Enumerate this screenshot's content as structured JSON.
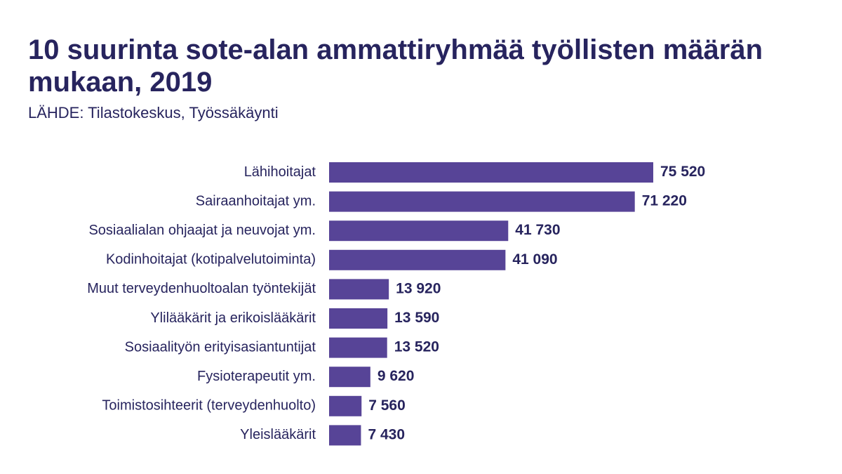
{
  "chart_data": {
    "type": "bar",
    "orientation": "horizontal",
    "title": "10 suurinta sote-alan ammattiryhmää työllisten määrän mukaan, 2019",
    "subtitle": "LÄHDE: Tilastokeskus, Työssäkäynti",
    "categories": [
      "Lähihoitajat",
      "Sairaanhoitajat ym.",
      "Sosiaalialan ohjaajat ja neuvojat ym.",
      "Kodinhoitajat (kotipalvelutoiminta)",
      "Muut terveydenhuoltoalan työntekijät",
      "Ylilääkärit ja erikoislääkärit",
      "Sosiaalityön erityisasiantuntijat",
      "Fysioterapeutit ym.",
      "Toimistosihteerit (terveydenhuolto)",
      "Yleislääkärit"
    ],
    "values": [
      75520,
      71220,
      41730,
      41090,
      13920,
      13590,
      13520,
      9620,
      7560,
      7430
    ],
    "value_labels": [
      "75 520",
      "71 220",
      "41 730",
      "41 090",
      "13 920",
      "13 590",
      "13 520",
      "9 620",
      "7 560",
      "7 430"
    ],
    "color": "#574497"
  }
}
